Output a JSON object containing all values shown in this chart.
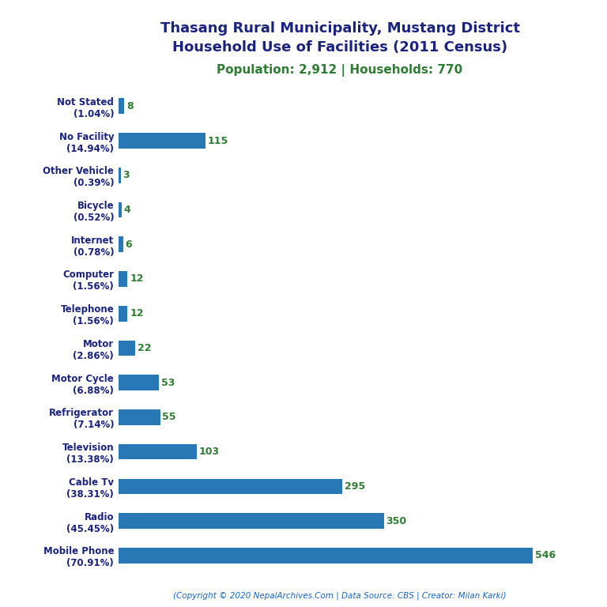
{
  "title_line1": "Thasang Rural Municipality, Mustang District",
  "title_line2": "Household Use of Facilities (2011 Census)",
  "subtitle": "Population: 2,912 | Households: 770",
  "footer": "(Copyright © 2020 NepalArchives.Com | Data Source: CBS | Creator: Milan Karki)",
  "categories": [
    "Not Stated\n(1.04%)",
    "No Facility\n(14.94%)",
    "Other Vehicle\n(0.39%)",
    "Bicycle\n(0.52%)",
    "Internet\n(0.78%)",
    "Computer\n(1.56%)",
    "Telephone\n(1.56%)",
    "Motor\n(2.86%)",
    "Motor Cycle\n(6.88%)",
    "Refrigerator\n(7.14%)",
    "Television\n(13.38%)",
    "Cable Tv\n(38.31%)",
    "Radio\n(45.45%)",
    "Mobile Phone\n(70.91%)"
  ],
  "values": [
    8,
    115,
    3,
    4,
    6,
    12,
    12,
    22,
    53,
    55,
    103,
    295,
    350,
    546
  ],
  "bar_color": "#2878b5",
  "title_color": "#1a237e",
  "subtitle_color": "#2e7d32",
  "value_color": "#2e7d32",
  "footer_color": "#1565c0",
  "background_color": "#ffffff",
  "xlim": [
    0,
    620
  ],
  "bar_height": 0.45,
  "label_fontsize": 8.5,
  "value_fontsize": 9,
  "title_fontsize": 13,
  "subtitle_fontsize": 11
}
